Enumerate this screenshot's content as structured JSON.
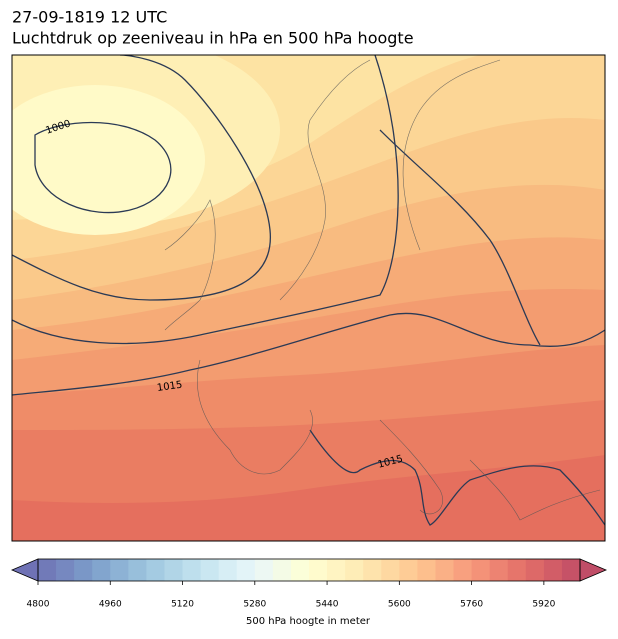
{
  "header": {
    "date": "27-09-1819 12 UTC",
    "title": "Luchtdruk op zeeniveau in hPa en 500 hPa hoogte"
  },
  "contour_labels": [
    "1000",
    "1015",
    "1015"
  ],
  "colorbar": {
    "label": "500 hPa hoogte in meter",
    "lim": [
      4800,
      6000
    ],
    "step": 40,
    "ticks": [
      4800,
      4960,
      5120,
      5280,
      5440,
      5600,
      5760,
      5920
    ]
  }
}
